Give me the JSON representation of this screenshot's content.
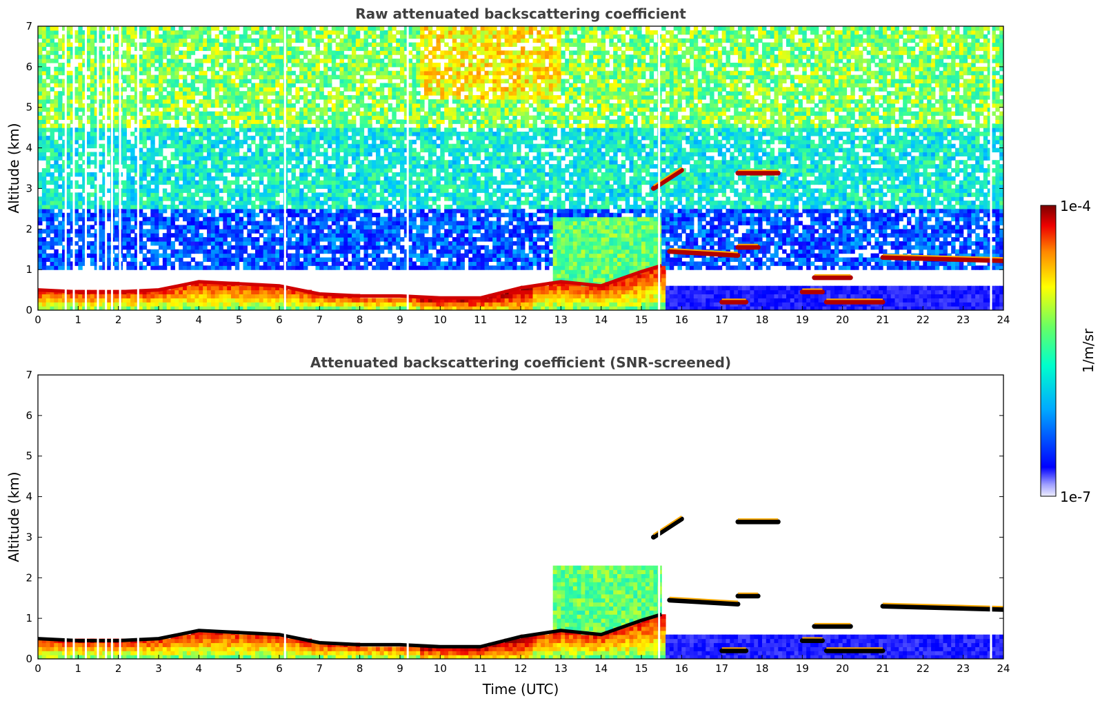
{
  "chart_data": [
    {
      "type": "heatmap",
      "title": "Raw attenuated backscattering coefficient",
      "xlabel": "",
      "ylabel": "Altitude (km)",
      "xlim": [
        0,
        24
      ],
      "ylim": [
        0,
        7
      ],
      "xticks": [
        "0",
        "1",
        "2",
        "3",
        "4",
        "5",
        "6",
        "7",
        "8",
        "9",
        "10",
        "11",
        "12",
        "13",
        "14",
        "15",
        "16",
        "17",
        "18",
        "19",
        "20",
        "21",
        "22",
        "23",
        "24"
      ],
      "yticks": [
        "0",
        "1",
        "2",
        "3",
        "4",
        "5",
        "6",
        "7"
      ],
      "background_noise": [
        {
          "alt_from": 4.5,
          "alt_to": 7.0,
          "level": 0.48,
          "note": "green-yellow noise, orange near 10-13 h"
        },
        {
          "alt_from": 2.5,
          "alt_to": 4.5,
          "level": 0.36,
          "note": "cyan-green noise"
        },
        {
          "alt_from": 1.0,
          "alt_to": 2.5,
          "level": 0.2,
          "note": "blue noise"
        }
      ],
      "boundary_layer_top_km": {
        "x": [
          0,
          1,
          2,
          3,
          4,
          5,
          6,
          7,
          8,
          9,
          10,
          11,
          12,
          13,
          14,
          15,
          15.5
        ],
        "y": [
          0.5,
          0.45,
          0.45,
          0.5,
          0.7,
          0.65,
          0.6,
          0.4,
          0.35,
          0.35,
          0.3,
          0.3,
          0.55,
          0.7,
          0.6,
          0.95,
          1.1
        ]
      },
      "cloud_layers": [
        {
          "t_start": 15.3,
          "t_end": 16.0,
          "alt_start_km": 3.0,
          "alt_end_km": 3.45
        },
        {
          "t_start": 17.4,
          "t_end": 18.4,
          "alt_start_km": 3.38,
          "alt_end_km": 3.38
        },
        {
          "t_start": 15.7,
          "t_end": 17.4,
          "alt_start_km": 1.45,
          "alt_end_km": 1.35
        },
        {
          "t_start": 17.4,
          "t_end": 17.9,
          "alt_start_km": 1.55,
          "alt_end_km": 1.55
        },
        {
          "t_start": 19.3,
          "t_end": 20.2,
          "alt_start_km": 0.8,
          "alt_end_km": 0.8
        },
        {
          "t_start": 19.0,
          "t_end": 19.5,
          "alt_start_km": 0.45,
          "alt_end_km": 0.45
        },
        {
          "t_start": 17.0,
          "t_end": 17.6,
          "alt_start_km": 0.2,
          "alt_end_km": 0.2
        },
        {
          "t_start": 19.6,
          "t_end": 21.0,
          "alt_start_km": 0.2,
          "alt_end_km": 0.2
        },
        {
          "t_start": 21.0,
          "t_end": 24.0,
          "alt_start_km": 1.3,
          "alt_end_km": 1.22
        }
      ],
      "data_gaps_hours": [
        0.7,
        0.9,
        1.2,
        1.5,
        1.7,
        1.85,
        2.05,
        2.5,
        6.15,
        9.2,
        15.45,
        23.7
      ]
    },
    {
      "type": "heatmap",
      "title": "Attenuated backscattering coefficient (SNR-screened)",
      "xlabel": "Time (UTC)",
      "ylabel": "Altitude (km)",
      "xlim": [
        0,
        24
      ],
      "ylim": [
        0,
        7
      ],
      "xticks": [
        "0",
        "1",
        "2",
        "3",
        "4",
        "5",
        "6",
        "7",
        "8",
        "9",
        "10",
        "11",
        "12",
        "13",
        "14",
        "15",
        "16",
        "17",
        "18",
        "19",
        "20",
        "21",
        "22",
        "23",
        "24"
      ],
      "yticks": [
        "0",
        "1",
        "2",
        "3",
        "4",
        "5",
        "6",
        "7"
      ],
      "note": "noise above the boundary layer removed; saturated cores rendered black"
    }
  ],
  "colorbar": {
    "min_label": "1e-7",
    "max_label": "1e-4",
    "unit_label": "1/m/sr",
    "colormap": "jet",
    "palette": [
      "#ffffff",
      "#0000ff",
      "#00c8ff",
      "#33ff99",
      "#ffff00",
      "#ff8800",
      "#ee0000",
      "#7a0000"
    ]
  }
}
